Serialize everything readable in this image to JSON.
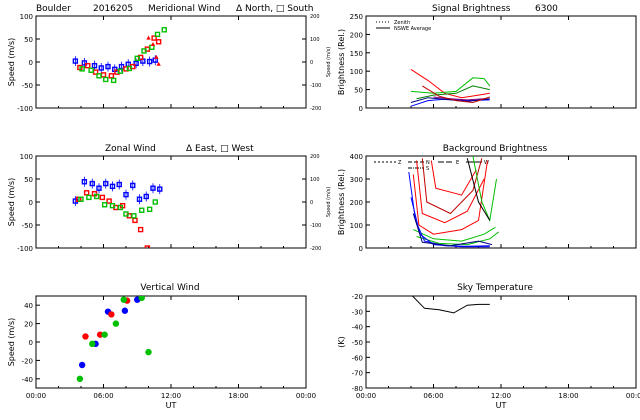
{
  "header": {
    "site": "Boulder",
    "date": "2016205",
    "meridional_title": "Meridional Wind",
    "meridional_legend": "Δ North, □ South",
    "zonal_title": "Zonal Wind",
    "zonal_legend": "Δ East, □ West",
    "signal_title": "Signal Brightness",
    "wavelength": "6300"
  },
  "chart_data": [
    {
      "id": "meridional",
      "type": "scatter",
      "title": "Meridional Wind",
      "ylabel": "Speed (m/s)",
      "y2label": "Speed (m/s)",
      "xlim": [
        0,
        24
      ],
      "ylim": [
        -100,
        100
      ],
      "y2lim": [
        -200,
        200
      ],
      "xticks": [
        "00:00",
        "06:00",
        "12:00",
        "18:00",
        "00:00"
      ],
      "yticks": [
        100,
        50,
        0,
        -50,
        -100
      ],
      "y2ticks": [
        200,
        100,
        0,
        -100,
        -200
      ],
      "series": [
        {
          "color": "#0000ff",
          "marker": "square",
          "points": [
            [
              3.5,
              2
            ],
            [
              4.3,
              -2
            ],
            [
              5.2,
              -8
            ],
            [
              5.8,
              -13
            ],
            [
              6.4,
              -10
            ],
            [
              7.0,
              -16
            ],
            [
              7.6,
              -10
            ],
            [
              8.2,
              -5
            ],
            [
              8.9,
              -3
            ],
            [
              9.5,
              2
            ],
            [
              10.1,
              1
            ],
            [
              10.6,
              4
            ]
          ]
        },
        {
          "color": "#ff0000",
          "marker": "square",
          "points": [
            [
              3.9,
              -12
            ],
            [
              4.6,
              -8
            ],
            [
              5.3,
              -22
            ],
            [
              6.0,
              -28
            ],
            [
              6.7,
              -30
            ],
            [
              7.2,
              -22
            ],
            [
              8.0,
              -15
            ],
            [
              8.6,
              -10
            ],
            [
              9.3,
              10
            ],
            [
              9.9,
              28
            ],
            [
              10.5,
              52
            ],
            [
              10.9,
              44
            ]
          ]
        },
        {
          "color": "#00c000",
          "marker": "square",
          "points": [
            [
              4.1,
              -15
            ],
            [
              4.9,
              -18
            ],
            [
              5.6,
              -30
            ],
            [
              6.2,
              -38
            ],
            [
              6.9,
              -40
            ],
            [
              7.5,
              -20
            ],
            [
              8.3,
              -14
            ],
            [
              9.0,
              8
            ],
            [
              9.6,
              24
            ],
            [
              10.3,
              32
            ],
            [
              10.8,
              60
            ],
            [
              11.4,
              70
            ]
          ]
        },
        {
          "color": "#ff0000",
          "marker": "triangle",
          "points": [
            [
              10.0,
              52
            ],
            [
              10.4,
              38
            ],
            [
              10.7,
              10
            ],
            [
              10.9,
              -5
            ]
          ]
        }
      ]
    },
    {
      "id": "zonal",
      "type": "scatter",
      "title": "Zonal Wind",
      "ylabel": "Speed (m/s)",
      "y2label": "Speed (m/s)",
      "xlim": [
        0,
        24
      ],
      "ylim": [
        -100,
        100
      ],
      "y2lim": [
        -200,
        200
      ],
      "xticks": [
        "00:00",
        "06:00",
        "12:00",
        "18:00",
        "00:00"
      ],
      "yticks": [
        100,
        50,
        0,
        -50,
        -100
      ],
      "y2ticks": [
        200,
        100,
        0,
        -100,
        -200
      ],
      "series": [
        {
          "color": "#0000ff",
          "marker": "square",
          "points": [
            [
              3.5,
              2
            ],
            [
              4.3,
              44
            ],
            [
              5.0,
              40
            ],
            [
              5.6,
              30
            ],
            [
              6.2,
              40
            ],
            [
              6.8,
              34
            ],
            [
              7.4,
              38
            ],
            [
              8.0,
              16
            ],
            [
              8.6,
              36
            ],
            [
              9.2,
              6
            ],
            [
              9.8,
              12
            ],
            [
              10.4,
              30
            ],
            [
              11.0,
              28
            ]
          ]
        },
        {
          "color": "#ff0000",
          "marker": "square",
          "points": [
            [
              3.8,
              6
            ],
            [
              4.5,
              20
            ],
            [
              5.2,
              18
            ],
            [
              5.9,
              10
            ],
            [
              6.5,
              2
            ],
            [
              7.1,
              -12
            ],
            [
              7.7,
              -8
            ],
            [
              8.3,
              -30
            ],
            [
              8.8,
              -40
            ],
            [
              9.3,
              -60
            ],
            [
              9.9,
              -100
            ]
          ]
        },
        {
          "color": "#00c000",
          "marker": "square",
          "points": [
            [
              4.0,
              6
            ],
            [
              4.7,
              10
            ],
            [
              5.4,
              12
            ],
            [
              6.1,
              -6
            ],
            [
              6.8,
              -8
            ],
            [
              7.5,
              -12
            ],
            [
              8.0,
              -26
            ],
            [
              8.7,
              -30
            ],
            [
              9.4,
              -18
            ],
            [
              10.1,
              -16
            ],
            [
              10.6,
              0
            ]
          ]
        }
      ]
    },
    {
      "id": "vertical",
      "type": "scatter",
      "title": "Vertical Wind",
      "ylabel": "Speed (m/s)",
      "xlabel": "UT",
      "xlim": [
        0,
        24
      ],
      "ylim": [
        -50,
        50
      ],
      "xticks": [
        "00:00",
        "06:00",
        "12:00",
        "18:00",
        "00:00"
      ],
      "yticks": [
        40,
        20,
        0,
        -20,
        -40
      ],
      "series": [
        {
          "color": "#0000ff",
          "marker": "circle",
          "points": [
            [
              4.1,
              -25
            ],
            [
              5.3,
              -2
            ],
            [
              6.4,
              33
            ],
            [
              7.9,
              34
            ],
            [
              9.0,
              46
            ]
          ]
        },
        {
          "color": "#ff0000",
          "marker": "circle",
          "points": [
            [
              4.4,
              6
            ],
            [
              5.7,
              8
            ],
            [
              6.7,
              30
            ],
            [
              8.1,
              45
            ]
          ]
        },
        {
          "color": "#00c000",
          "marker": "circle",
          "points": [
            [
              3.9,
              -40
            ],
            [
              5.0,
              -2
            ],
            [
              6.1,
              8
            ],
            [
              7.1,
              20
            ],
            [
              7.8,
              46
            ],
            [
              9.4,
              48
            ],
            [
              10.0,
              -11
            ]
          ]
        }
      ]
    },
    {
      "id": "signal",
      "type": "line",
      "title": "Signal Brightness",
      "ylabel": "Brightness (Rel.)",
      "xlim": [
        0,
        24
      ],
      "ylim": [
        0,
        250
      ],
      "xticks": [
        "00:00",
        "06:00",
        "12:00",
        "18:00",
        "00:00"
      ],
      "yticks": [
        250,
        200,
        150,
        100,
        50,
        0
      ],
      "legend": [
        "Zenith",
        "NSWE Average"
      ],
      "legend_position": "top-left",
      "series": [
        {
          "color": "#ff0000",
          "points": [
            [
              4.0,
              105
            ],
            [
              5.5,
              75
            ],
            [
              7.0,
              40
            ],
            [
              8.5,
              28
            ],
            [
              10.0,
              35
            ],
            [
              11.0,
              40
            ]
          ]
        },
        {
          "color": "#00c000",
          "points": [
            [
              4.0,
              45
            ],
            [
              6.0,
              40
            ],
            [
              8.0,
              45
            ],
            [
              9.5,
              82
            ],
            [
              10.5,
              80
            ],
            [
              11.0,
              60
            ]
          ]
        },
        {
          "color": "#008000",
          "points": [
            [
              4.5,
              25
            ],
            [
              6.0,
              35
            ],
            [
              8.0,
              40
            ],
            [
              9.5,
              60
            ],
            [
              11.0,
              50
            ]
          ]
        },
        {
          "color": "#0000ff",
          "points": [
            [
              4.0,
              5
            ],
            [
              5.5,
              20
            ],
            [
              7.5,
              25
            ],
            [
              9.0,
              20
            ],
            [
              11.0,
              22
            ]
          ]
        },
        {
          "color": "#000080",
          "points": [
            [
              4.0,
              15
            ],
            [
              5.5,
              28
            ],
            [
              7.5,
              22
            ],
            [
              9.0,
              18
            ],
            [
              11.0,
              25
            ]
          ]
        },
        {
          "color": "#800080",
          "points": [
            [
              6.0,
              30
            ],
            [
              7.5,
              25
            ],
            [
              9.0,
              22
            ],
            [
              10.5,
              25
            ]
          ]
        },
        {
          "color": "#c00000",
          "points": [
            [
              5.0,
              60
            ],
            [
              6.5,
              32
            ],
            [
              8.0,
              20
            ],
            [
              9.5,
              15
            ],
            [
              11.0,
              30
            ]
          ]
        }
      ]
    },
    {
      "id": "background",
      "type": "line",
      "title": "Background Brightness",
      "ylabel": "Brightness (Rel.)",
      "xlim": [
        0,
        24
      ],
      "ylim": [
        0,
        400
      ],
      "xticks": [
        "00:00",
        "06:00",
        "12:00",
        "18:00",
        "00:00"
      ],
      "yticks": [
        400,
        300,
        200,
        100,
        0
      ],
      "legend": [
        "Z",
        "N",
        "S",
        "E",
        "W"
      ],
      "legend_position": "top-left",
      "series": [
        {
          "color": "#ff0000",
          "points": [
            [
              4.2,
              320
            ],
            [
              4.7,
              100
            ],
            [
              6.0,
              60
            ],
            [
              8.5,
              80
            ],
            [
              10.0,
              120
            ],
            [
              10.8,
              380
            ]
          ]
        },
        {
          "color": "#ff0000",
          "points": [
            [
              4.5,
              380
            ],
            [
              5.0,
              150
            ],
            [
              7.0,
              110
            ],
            [
              9.0,
              160
            ],
            [
              10.5,
              300
            ]
          ]
        },
        {
          "color": "#c00000",
          "points": [
            [
              5.0,
              390
            ],
            [
              5.4,
              200
            ],
            [
              7.5,
              150
            ],
            [
              9.5,
              250
            ],
            [
              10.3,
              390
            ]
          ]
        },
        {
          "color": "#ff0000",
          "points": [
            [
              5.8,
              380
            ],
            [
              6.2,
              260
            ],
            [
              8.5,
              230
            ],
            [
              9.8,
              340
            ]
          ]
        },
        {
          "color": "#00c000",
          "points": [
            [
              4.2,
              80
            ],
            [
              6.0,
              40
            ],
            [
              8.5,
              30
            ],
            [
              10.5,
              60
            ],
            [
              11.5,
              90
            ]
          ]
        },
        {
          "color": "#00c000",
          "points": [
            [
              4.5,
              50
            ],
            [
              6.5,
              20
            ],
            [
              9.0,
              15
            ],
            [
              11.0,
              40
            ],
            [
              11.8,
              70
            ]
          ]
        },
        {
          "color": "#00c000",
          "points": [
            [
              9.5,
              400
            ],
            [
              10.3,
              200
            ],
            [
              11.0,
              120
            ],
            [
              11.6,
              300
            ]
          ]
        },
        {
          "color": "#0000ff",
          "points": [
            [
              3.8,
              330
            ],
            [
              4.4,
              120
            ],
            [
              5.2,
              30
            ],
            [
              7.0,
              10
            ],
            [
              9.0,
              8
            ],
            [
              11.0,
              10
            ]
          ]
        },
        {
          "color": "#0000ff",
          "points": [
            [
              4.0,
              220
            ],
            [
              4.8,
              60
            ],
            [
              6.0,
              15
            ],
            [
              8.5,
              5
            ],
            [
              11.0,
              5
            ]
          ]
        },
        {
          "color": "#000080",
          "points": [
            [
              4.2,
              150
            ],
            [
              5.0,
              25
            ],
            [
              7.5,
              10
            ],
            [
              10.0,
              30
            ],
            [
              11.2,
              15
            ]
          ]
        },
        {
          "color": "#000000",
          "points": [
            [
              9.0,
              390
            ],
            [
              10.0,
              200
            ],
            [
              11.0,
              120
            ]
          ]
        }
      ]
    },
    {
      "id": "sky",
      "type": "line",
      "title": "Sky Temperature",
      "ylabel": "(K)",
      "xlabel": "UT",
      "xlim": [
        0,
        24
      ],
      "ylim": [
        -80,
        -20
      ],
      "xticks": [
        "00:00",
        "06:00",
        "12:00",
        "18:00",
        "00:00"
      ],
      "yticks": [
        -20,
        -30,
        -40,
        -50,
        -60,
        -70,
        -80
      ],
      "series": [
        {
          "color": "#000000",
          "points": [
            [
              4.0,
              -19
            ],
            [
              5.2,
              -28
            ],
            [
              6.5,
              -29
            ],
            [
              7.8,
              -31
            ],
            [
              9.0,
              -26
            ],
            [
              10.0,
              -25.5
            ],
            [
              11.0,
              -25.5
            ]
          ]
        }
      ]
    }
  ]
}
